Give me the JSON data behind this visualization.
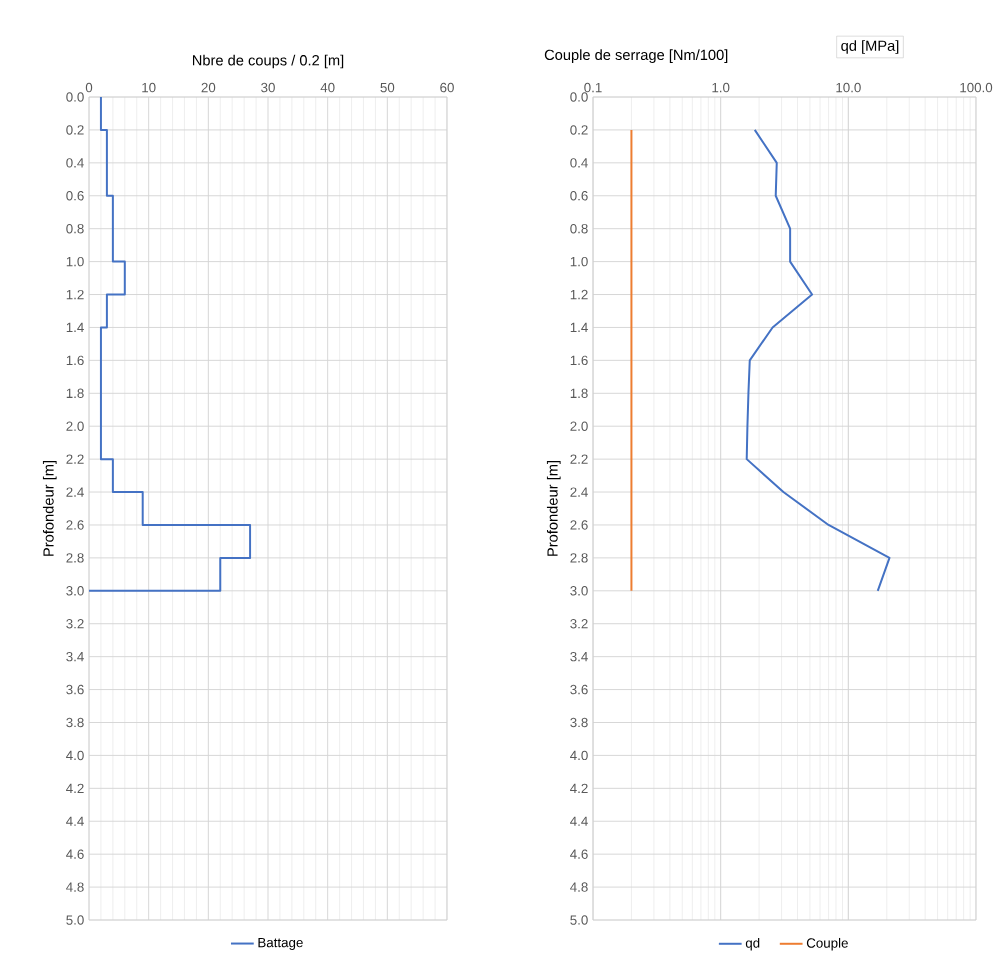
{
  "chart_data": [
    {
      "type": "line",
      "xlabel": "Nbre de coups / 0.2 [m]",
      "ylabel": "Profondeur [m]",
      "xlim": [
        0,
        60
      ],
      "xticks": [
        0,
        10,
        20,
        30,
        40,
        50,
        60
      ],
      "ylim": [
        5.0,
        0.0
      ],
      "yticks": [
        {
          "value": 0,
          "label": "0.0"
        },
        {
          "value": 0.2,
          "label": "0.2"
        },
        {
          "value": 0.4,
          "label": "0.4"
        },
        {
          "value": 0.6,
          "label": "0.6"
        },
        {
          "value": 0.8,
          "label": "0.8"
        },
        {
          "value": 1,
          "label": "1.0"
        },
        {
          "value": 1.2,
          "label": "1.2"
        },
        {
          "value": 1.4,
          "label": "1.4"
        },
        {
          "value": 1.6,
          "label": "1.6"
        },
        {
          "value": 1.8,
          "label": "1.8"
        },
        {
          "value": 2,
          "label": "2.0"
        },
        {
          "value": 2.2,
          "label": "2.2"
        },
        {
          "value": 2.4,
          "label": "2.4"
        },
        {
          "value": 2.6,
          "label": "2.6"
        },
        {
          "value": 2.8,
          "label": "2.8"
        },
        {
          "value": 3,
          "label": "3.0"
        },
        {
          "value": 3.2,
          "label": "3.2"
        },
        {
          "value": 3.4,
          "label": "3.4"
        },
        {
          "value": 3.6,
          "label": "3.6"
        },
        {
          "value": 3.8,
          "label": "3.8"
        },
        {
          "value": 4,
          "label": "4.0"
        },
        {
          "value": 4.2,
          "label": "4.2"
        },
        {
          "value": 4.4,
          "label": "4.4"
        },
        {
          "value": 4.6,
          "label": "4.6"
        },
        {
          "value": 4.8,
          "label": "4.8"
        },
        {
          "value": 5,
          "label": "5.0"
        }
      ],
      "grid": true,
      "legend": "bottom",
      "series": [
        {
          "name": "Battage",
          "color": "#4472c4",
          "x": [
            2,
            2,
            3,
            3,
            4,
            4,
            6,
            6,
            3,
            3,
            2,
            2,
            4,
            4,
            9,
            9,
            27,
            27,
            22,
            22,
            0
          ],
          "values": [
            0,
            0.2,
            0.2,
            0.6,
            0.6,
            1.0,
            1.0,
            1.2,
            1.2,
            1.4,
            1.4,
            2.2,
            2.2,
            2.4,
            2.4,
            2.6,
            2.6,
            2.8,
            2.8,
            3.0,
            3.0
          ]
        }
      ]
    },
    {
      "type": "line",
      "xlabel": "Couple de serrage [Nm/100]",
      "ylabel": "Profondeur [m]",
      "annotations": [
        "qd [MPa]"
      ],
      "log": "x",
      "xlim": [
        0.1,
        100
      ],
      "xticks": [
        0.1,
        {
          "value": 1,
          "label": "1.0"
        },
        {
          "value": 10,
          "label": "10.0"
        },
        {
          "value": 100,
          "label": "100.0"
        }
      ],
      "ylim": [
        5.0,
        0.0
      ],
      "yticks": [
        {
          "value": 0,
          "label": "0.0"
        },
        {
          "value": 0.2,
          "label": "0.2"
        },
        {
          "value": 0.4,
          "label": "0.4"
        },
        {
          "value": 0.6,
          "label": "0.6"
        },
        {
          "value": 0.8,
          "label": "0.8"
        },
        {
          "value": 1,
          "label": "1.0"
        },
        {
          "value": 1.2,
          "label": "1.2"
        },
        {
          "value": 1.4,
          "label": "1.4"
        },
        {
          "value": 1.6,
          "label": "1.6"
        },
        {
          "value": 1.8,
          "label": "1.8"
        },
        {
          "value": 2,
          "label": "2.0"
        },
        {
          "value": 2.2,
          "label": "2.2"
        },
        {
          "value": 2.4,
          "label": "2.4"
        },
        {
          "value": 2.6,
          "label": "2.6"
        },
        {
          "value": 2.8,
          "label": "2.8"
        },
        {
          "value": 3,
          "label": "3.0"
        },
        {
          "value": 3.2,
          "label": "3.2"
        },
        {
          "value": 3.4,
          "label": "3.4"
        },
        {
          "value": 3.6,
          "label": "3.6"
        },
        {
          "value": 3.8,
          "label": "3.8"
        },
        {
          "value": 4,
          "label": "4.0"
        },
        {
          "value": 4.2,
          "label": "4.2"
        },
        {
          "value": 4.4,
          "label": "4.4"
        },
        {
          "value": 4.6,
          "label": "4.6"
        },
        {
          "value": 4.8,
          "label": "4.8"
        },
        {
          "value": 5,
          "label": "5.0"
        }
      ],
      "grid": true,
      "legend": "bottom",
      "series": [
        {
          "name": "qd",
          "color": "#4472c4",
          "x": [
            1.85,
            2.75,
            2.7,
            3.5,
            3.5,
            5.2,
            2.55,
            1.69,
            1.65,
            1.62,
            1.6,
            3.1,
            7.0,
            21,
            17
          ],
          "values": [
            0.2,
            0.4,
            0.6,
            0.8,
            1.0,
            1.2,
            1.4,
            1.6,
            1.8,
            2.0,
            2.2,
            2.4,
            2.6,
            2.8,
            3.0
          ]
        },
        {
          "name": "Couple",
          "color": "#ed7d31",
          "x": [
            0.2,
            0.2
          ],
          "values": [
            0.2,
            3.0
          ]
        }
      ]
    }
  ]
}
